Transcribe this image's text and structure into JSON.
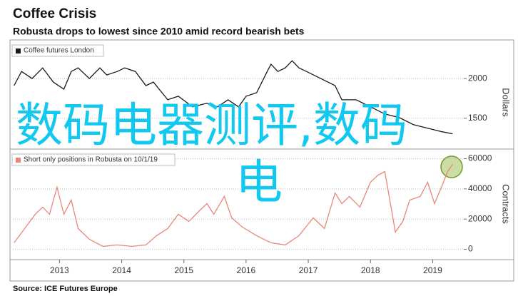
{
  "header": {
    "title": "Coffee Crisis",
    "subtitle": "Robusta drops to lowest since 2010 amid record bearish bets"
  },
  "chart_data": [
    {
      "type": "line",
      "y_label": "Dollars",
      "xlim": [
        2012.75,
        2020
      ],
      "ylim": [
        1130,
        2270
      ],
      "yticks": [
        1500,
        2000
      ],
      "grid": true,
      "x": [
        2012.77,
        2012.89,
        2013.06,
        2013.23,
        2013.4,
        2013.57,
        2013.69,
        2013.8,
        2013.98,
        2014.15,
        2014.26,
        2014.43,
        2014.55,
        2014.72,
        2014.89,
        2015.01,
        2015.24,
        2015.41,
        2015.64,
        2015.87,
        2016.04,
        2016.21,
        2016.38,
        2016.5,
        2016.67,
        2016.84,
        2016.9,
        2017.01,
        2017.13,
        2017.24,
        2017.35,
        2017.47,
        2017.7,
        2017.93,
        2018.04,
        2018.27,
        2018.5,
        2018.73,
        2018.96,
        2019.19,
        2019.42,
        2019.65,
        2019.82
      ],
      "series": [
        {
          "name": "Coffee futures London",
          "color": "#1a1a1a",
          "values": [
            1911,
            2089,
            2000,
            2134,
            1955,
            1866,
            2089,
            2134,
            2000,
            2134,
            2045,
            2089,
            2134,
            2089,
            1911,
            1955,
            1732,
            1777,
            1643,
            1688,
            1643,
            1732,
            1643,
            1777,
            1821,
            2089,
            2179,
            2089,
            2134,
            2223,
            2134,
            2089,
            2000,
            1911,
            1732,
            1732,
            1643,
            1554,
            1509,
            1420,
            1375,
            1330,
            1304
          ]
        }
      ]
    },
    {
      "type": "line",
      "y_label": "Contracts",
      "xlim": [
        2012.75,
        2020
      ],
      "ylim": [
        -5000,
        65000
      ],
      "yticks": [
        0,
        20000,
        40000,
        60000
      ],
      "grid": true,
      "xticks": [
        {
          "value": 2013.5,
          "label": "2013"
        },
        {
          "value": 2014.5,
          "label": "2014"
        },
        {
          "value": 2015.5,
          "label": "2015"
        },
        {
          "value": 2016.5,
          "label": "2016"
        },
        {
          "value": 2017.5,
          "label": "2017"
        },
        {
          "value": 2018.5,
          "label": "2018"
        },
        {
          "value": 2019.5,
          "label": "2019"
        }
      ],
      "x": [
        2012.77,
        2012.94,
        2013.11,
        2013.23,
        2013.34,
        2013.46,
        2013.57,
        2013.69,
        2013.8,
        2013.98,
        2014.2,
        2014.43,
        2014.66,
        2014.89,
        2015.06,
        2015.24,
        2015.41,
        2015.58,
        2015.75,
        2015.87,
        2015.98,
        2016.15,
        2016.27,
        2016.44,
        2016.67,
        2016.9,
        2017.13,
        2017.35,
        2017.58,
        2017.76,
        2017.93,
        2018.04,
        2018.16,
        2018.33,
        2018.5,
        2018.62,
        2018.73,
        2018.85,
        2018.9,
        2019.02,
        2019.13,
        2019.3,
        2019.42,
        2019.53,
        2019.65,
        2019.74,
        2019.82
      ],
      "series": [
        {
          "name": "Short only positions in Robusta on 10/1/19",
          "color": "#e8877a",
          "values": [
            4260,
            13710,
            23170,
            27900,
            23170,
            41130,
            23170,
            32620,
            13710,
            6620,
            1890,
            2840,
            1890,
            2840,
            8980,
            13710,
            23170,
            18440,
            25530,
            30260,
            23170,
            34990,
            20800,
            14660,
            8980,
            4260,
            2840,
            8980,
            20800,
            13710,
            37350,
            30260,
            34990,
            27900,
            44440,
            49170,
            51540,
            23170,
            11350,
            18440,
            32620,
            34990,
            44440,
            30260,
            42080,
            51540,
            56260
          ]
        }
      ]
    }
  ],
  "source": "Source: ICE Futures Europe",
  "overlay": [
    "数码电器测评,数码",
    "电"
  ]
}
